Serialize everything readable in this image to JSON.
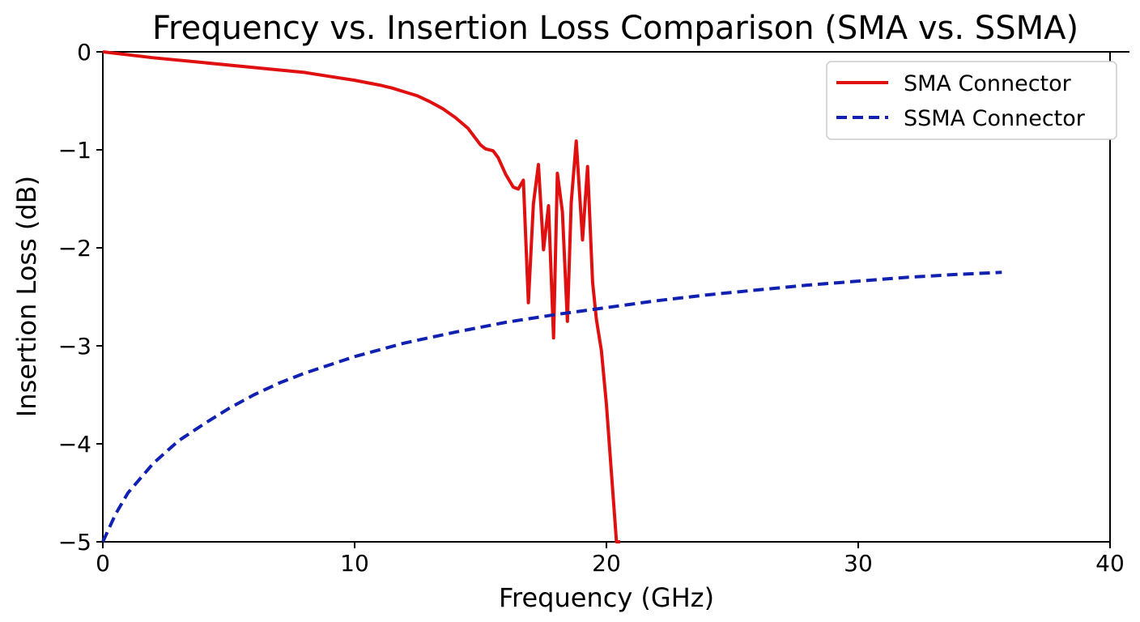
{
  "chart_data": {
    "type": "line",
    "title": "Frequency vs. Insertion Loss Comparison (SMA vs. SSMA)",
    "xlabel": "Frequency (GHz)",
    "ylabel": "Insertion Loss (dB)",
    "xlim": [
      0,
      40
    ],
    "ylim": [
      -5,
      0
    ],
    "xticks": [
      0,
      10,
      20,
      30,
      40
    ],
    "xtick_labels": [
      "0",
      "10",
      "20",
      "30",
      "40"
    ],
    "yticks": [
      0,
      -1,
      -2,
      -3,
      -4,
      -5
    ],
    "ytick_labels": [
      "0",
      "−1",
      "−2",
      "−3",
      "−4",
      "−5"
    ],
    "grid": false,
    "legend_position": "top-right",
    "series": [
      {
        "name": "SMA Connector",
        "color": "#e01010",
        "style": "solid",
        "x": [
          0,
          2,
          4,
          6,
          8,
          9,
          10,
          11,
          11.5,
          12,
          12.5,
          13,
          13.5,
          14,
          14.5,
          15,
          15.2,
          15.5,
          15.7,
          16,
          16.3,
          16.5,
          16.7,
          16.9,
          17.1,
          17.3,
          17.5,
          17.7,
          17.9,
          18.05,
          18.25,
          18.45,
          18.6,
          18.8,
          19.05,
          19.25,
          19.45,
          19.6,
          19.8,
          20.0,
          20.2,
          20.4,
          20.55
        ],
        "y": [
          0,
          -0.06,
          -0.11,
          -0.16,
          -0.21,
          -0.25,
          -0.29,
          -0.34,
          -0.37,
          -0.41,
          -0.45,
          -0.51,
          -0.58,
          -0.67,
          -0.78,
          -0.95,
          -0.99,
          -1.01,
          -1.08,
          -1.25,
          -1.38,
          -1.4,
          -1.31,
          -2.56,
          -1.55,
          -1.15,
          -2.02,
          -1.57,
          -2.92,
          -1.24,
          -1.63,
          -2.75,
          -1.54,
          -0.91,
          -1.92,
          -1.17,
          -2.35,
          -2.73,
          -3.05,
          -3.6,
          -4.3,
          -5.0,
          -5.0
        ]
      },
      {
        "name": "SSMA Connector",
        "color": "#1020b0",
        "style": "dashed",
        "x": [
          0,
          0.5,
          1,
          2,
          3,
          4,
          5,
          6,
          7,
          8,
          10,
          12,
          14,
          16,
          18,
          20,
          22,
          24,
          26,
          28,
          30,
          32,
          34,
          35.7
        ],
        "y": [
          -5.0,
          -4.72,
          -4.5,
          -4.2,
          -3.97,
          -3.8,
          -3.64,
          -3.5,
          -3.38,
          -3.28,
          -3.11,
          -2.97,
          -2.86,
          -2.76,
          -2.68,
          -2.61,
          -2.54,
          -2.48,
          -2.43,
          -2.38,
          -2.34,
          -2.3,
          -2.27,
          -2.25
        ]
      }
    ]
  }
}
